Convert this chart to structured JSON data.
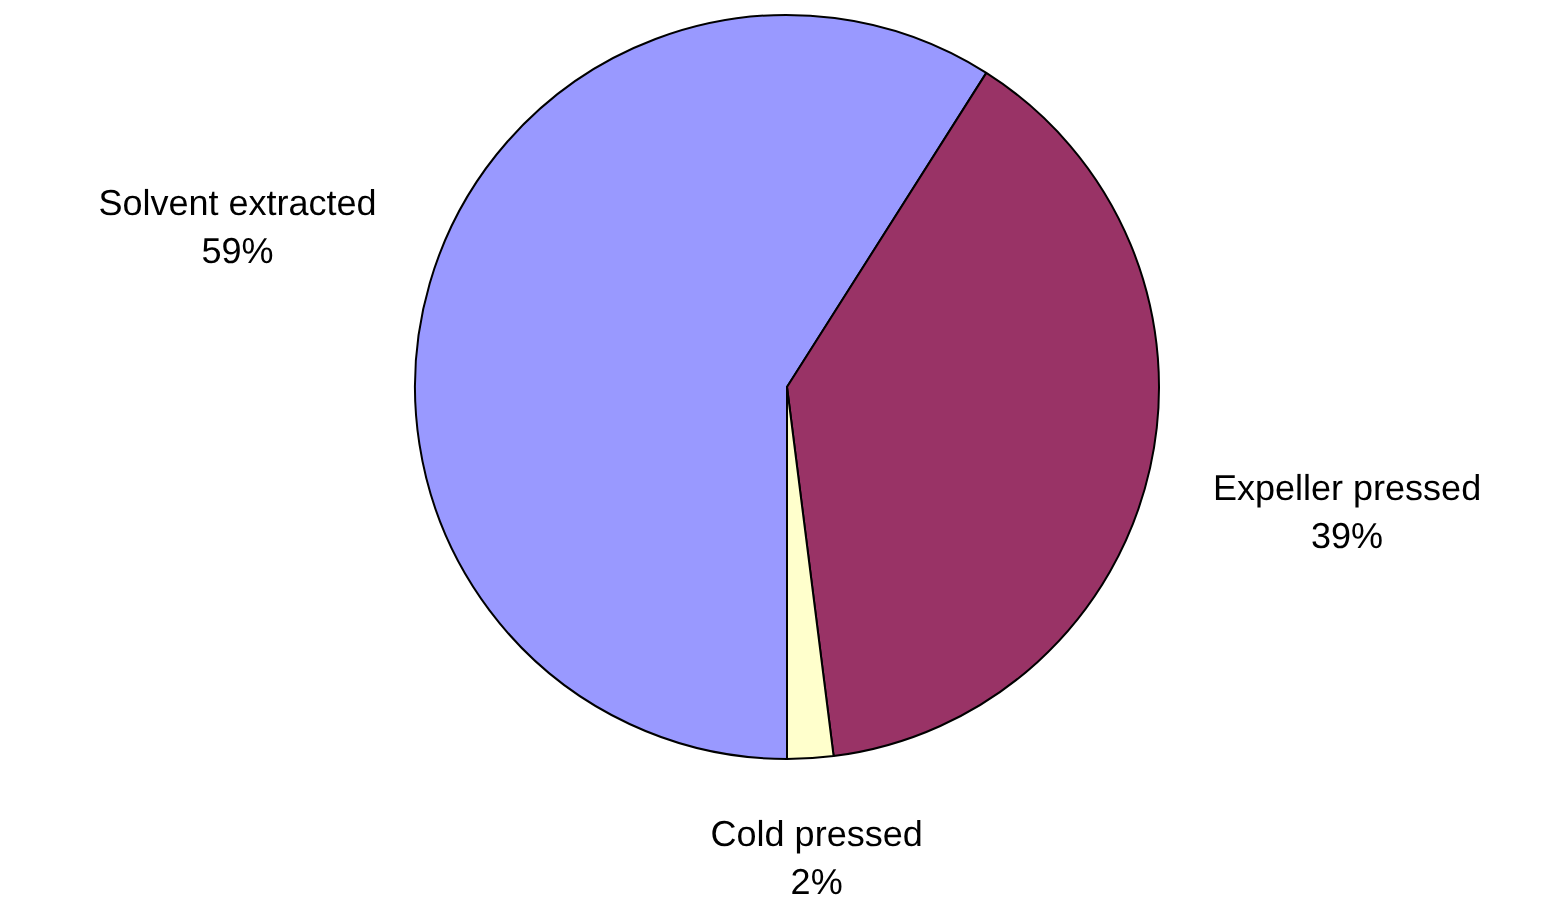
{
  "chart_data": {
    "type": "pie",
    "categories": [
      "Solvent extracted",
      "Expeller pressed",
      "Cold pressed"
    ],
    "values": [
      59,
      39,
      2
    ],
    "colors": [
      "#9999ff",
      "#993366",
      "#ffffcc"
    ],
    "value_labels": [
      "59%",
      "39%",
      "2%"
    ],
    "legend": false
  }
}
